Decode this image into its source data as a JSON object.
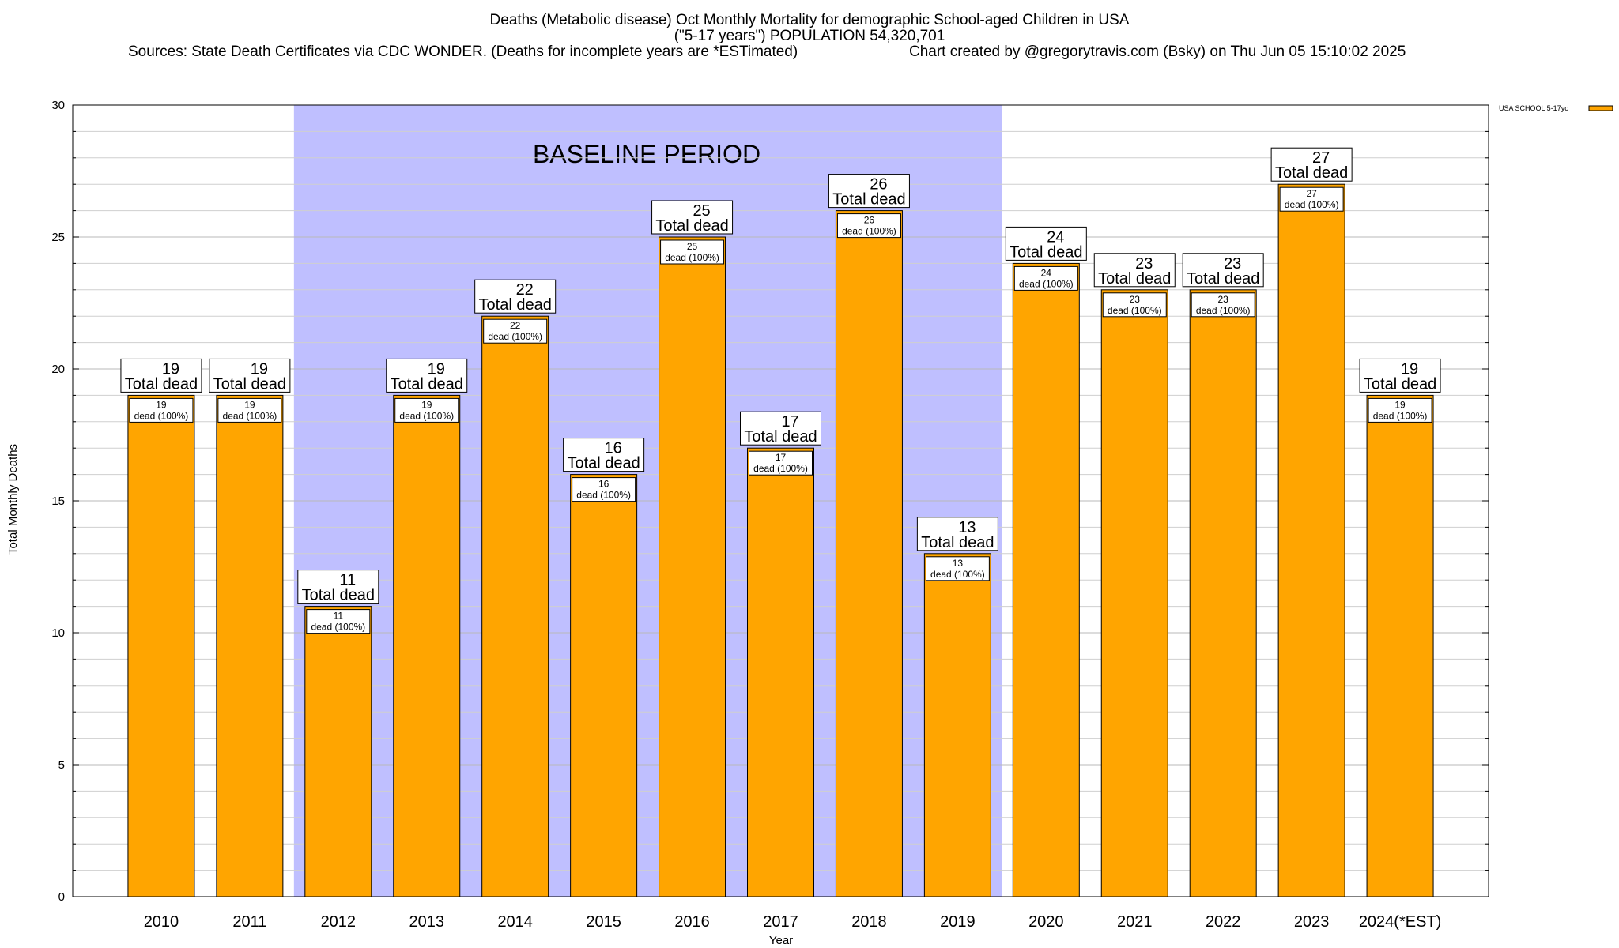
{
  "chart_data": {
    "type": "bar",
    "title": "Deaths (Metabolic disease) Oct Monthly Mortality for demographic School-aged Children in USA",
    "subtitle": "(\"5-17 years\") POPULATION 54,320,701",
    "source": "Sources: State Death Certificates via CDC WONDER. (Deaths for incomplete years are *ESTimated)",
    "credit": "Chart created by @gregorytravis.com (Bsky) on Thu Jun 05 15:10:02 2025",
    "xlabel": "Year",
    "ylabel": "Total Monthly Deaths",
    "ylim": [
      0,
      30
    ],
    "yticks": [
      0,
      5,
      10,
      15,
      20,
      25,
      30
    ],
    "grid": true,
    "legend_position": "top-right",
    "series": [
      {
        "name": "USA SCHOOL 5-17yo",
        "color": "#FFA500",
        "values": [
          19,
          19,
          11,
          19,
          22,
          16,
          25,
          17,
          26,
          13,
          24,
          23,
          23,
          27,
          19
        ]
      }
    ],
    "categories": [
      "2010",
      "2011",
      "2012",
      "2013",
      "2014",
      "2015",
      "2016",
      "2017",
      "2018",
      "2019",
      "2020",
      "2021",
      "2022",
      "2023",
      "2024(*EST)"
    ],
    "bar_top_label_text": "Total dead",
    "bar_inner_label_text": "dead (100%)",
    "annotation": {
      "text": "BASELINE PERIOD",
      "from_category": "2012",
      "to_category": "2019",
      "color": "#BFBFFF"
    }
  }
}
